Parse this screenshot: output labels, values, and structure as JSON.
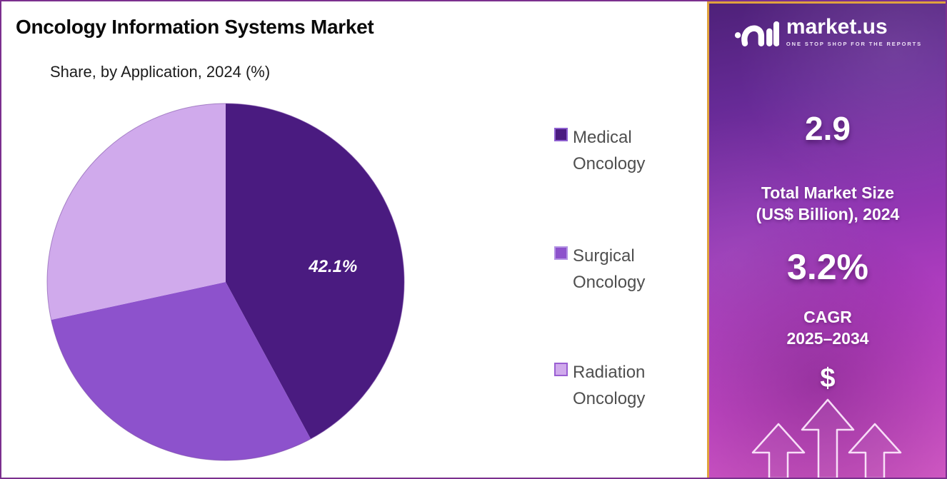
{
  "frame": {
    "border_color": "#7b2f8e"
  },
  "chart_data": {
    "type": "pie",
    "title": "Oncology Information Systems Market",
    "subtitle": "Share, by Application, 2024 (%)",
    "unit": "%",
    "legend_position": "right",
    "start_angle_deg": 0,
    "direction": "clockwise",
    "slices": [
      {
        "label": "Medical Oncology",
        "value": 42.1,
        "data_label": "42.1%",
        "color": "#4a1b80",
        "legend_border": "#8e5fd0"
      },
      {
        "label": "Surgical Oncology",
        "value": 29.5,
        "data_label": "",
        "color": "#8d52cc",
        "legend_border": "#b493e4",
        "estimated": true
      },
      {
        "label": "Radiation Oncology",
        "value": 28.4,
        "data_label": "",
        "color": "#d0aaec",
        "legend_border": "#9a5fd2",
        "estimated": true
      }
    ]
  },
  "sidebar": {
    "brand_name": "market.us",
    "brand_tagline": "ONE STOP SHOP FOR THE REPORTS",
    "stat_value_1": "2.9",
    "stat_label_1_line1": "Total Market Size",
    "stat_label_1_line2": "(US$ Billion), 2024",
    "stat_value_2": "3.2%",
    "stat_label_2": "CAGR",
    "stat_period_2": "2025–2034",
    "dollar_symbol": "$",
    "border_color": "#e0a23e"
  }
}
